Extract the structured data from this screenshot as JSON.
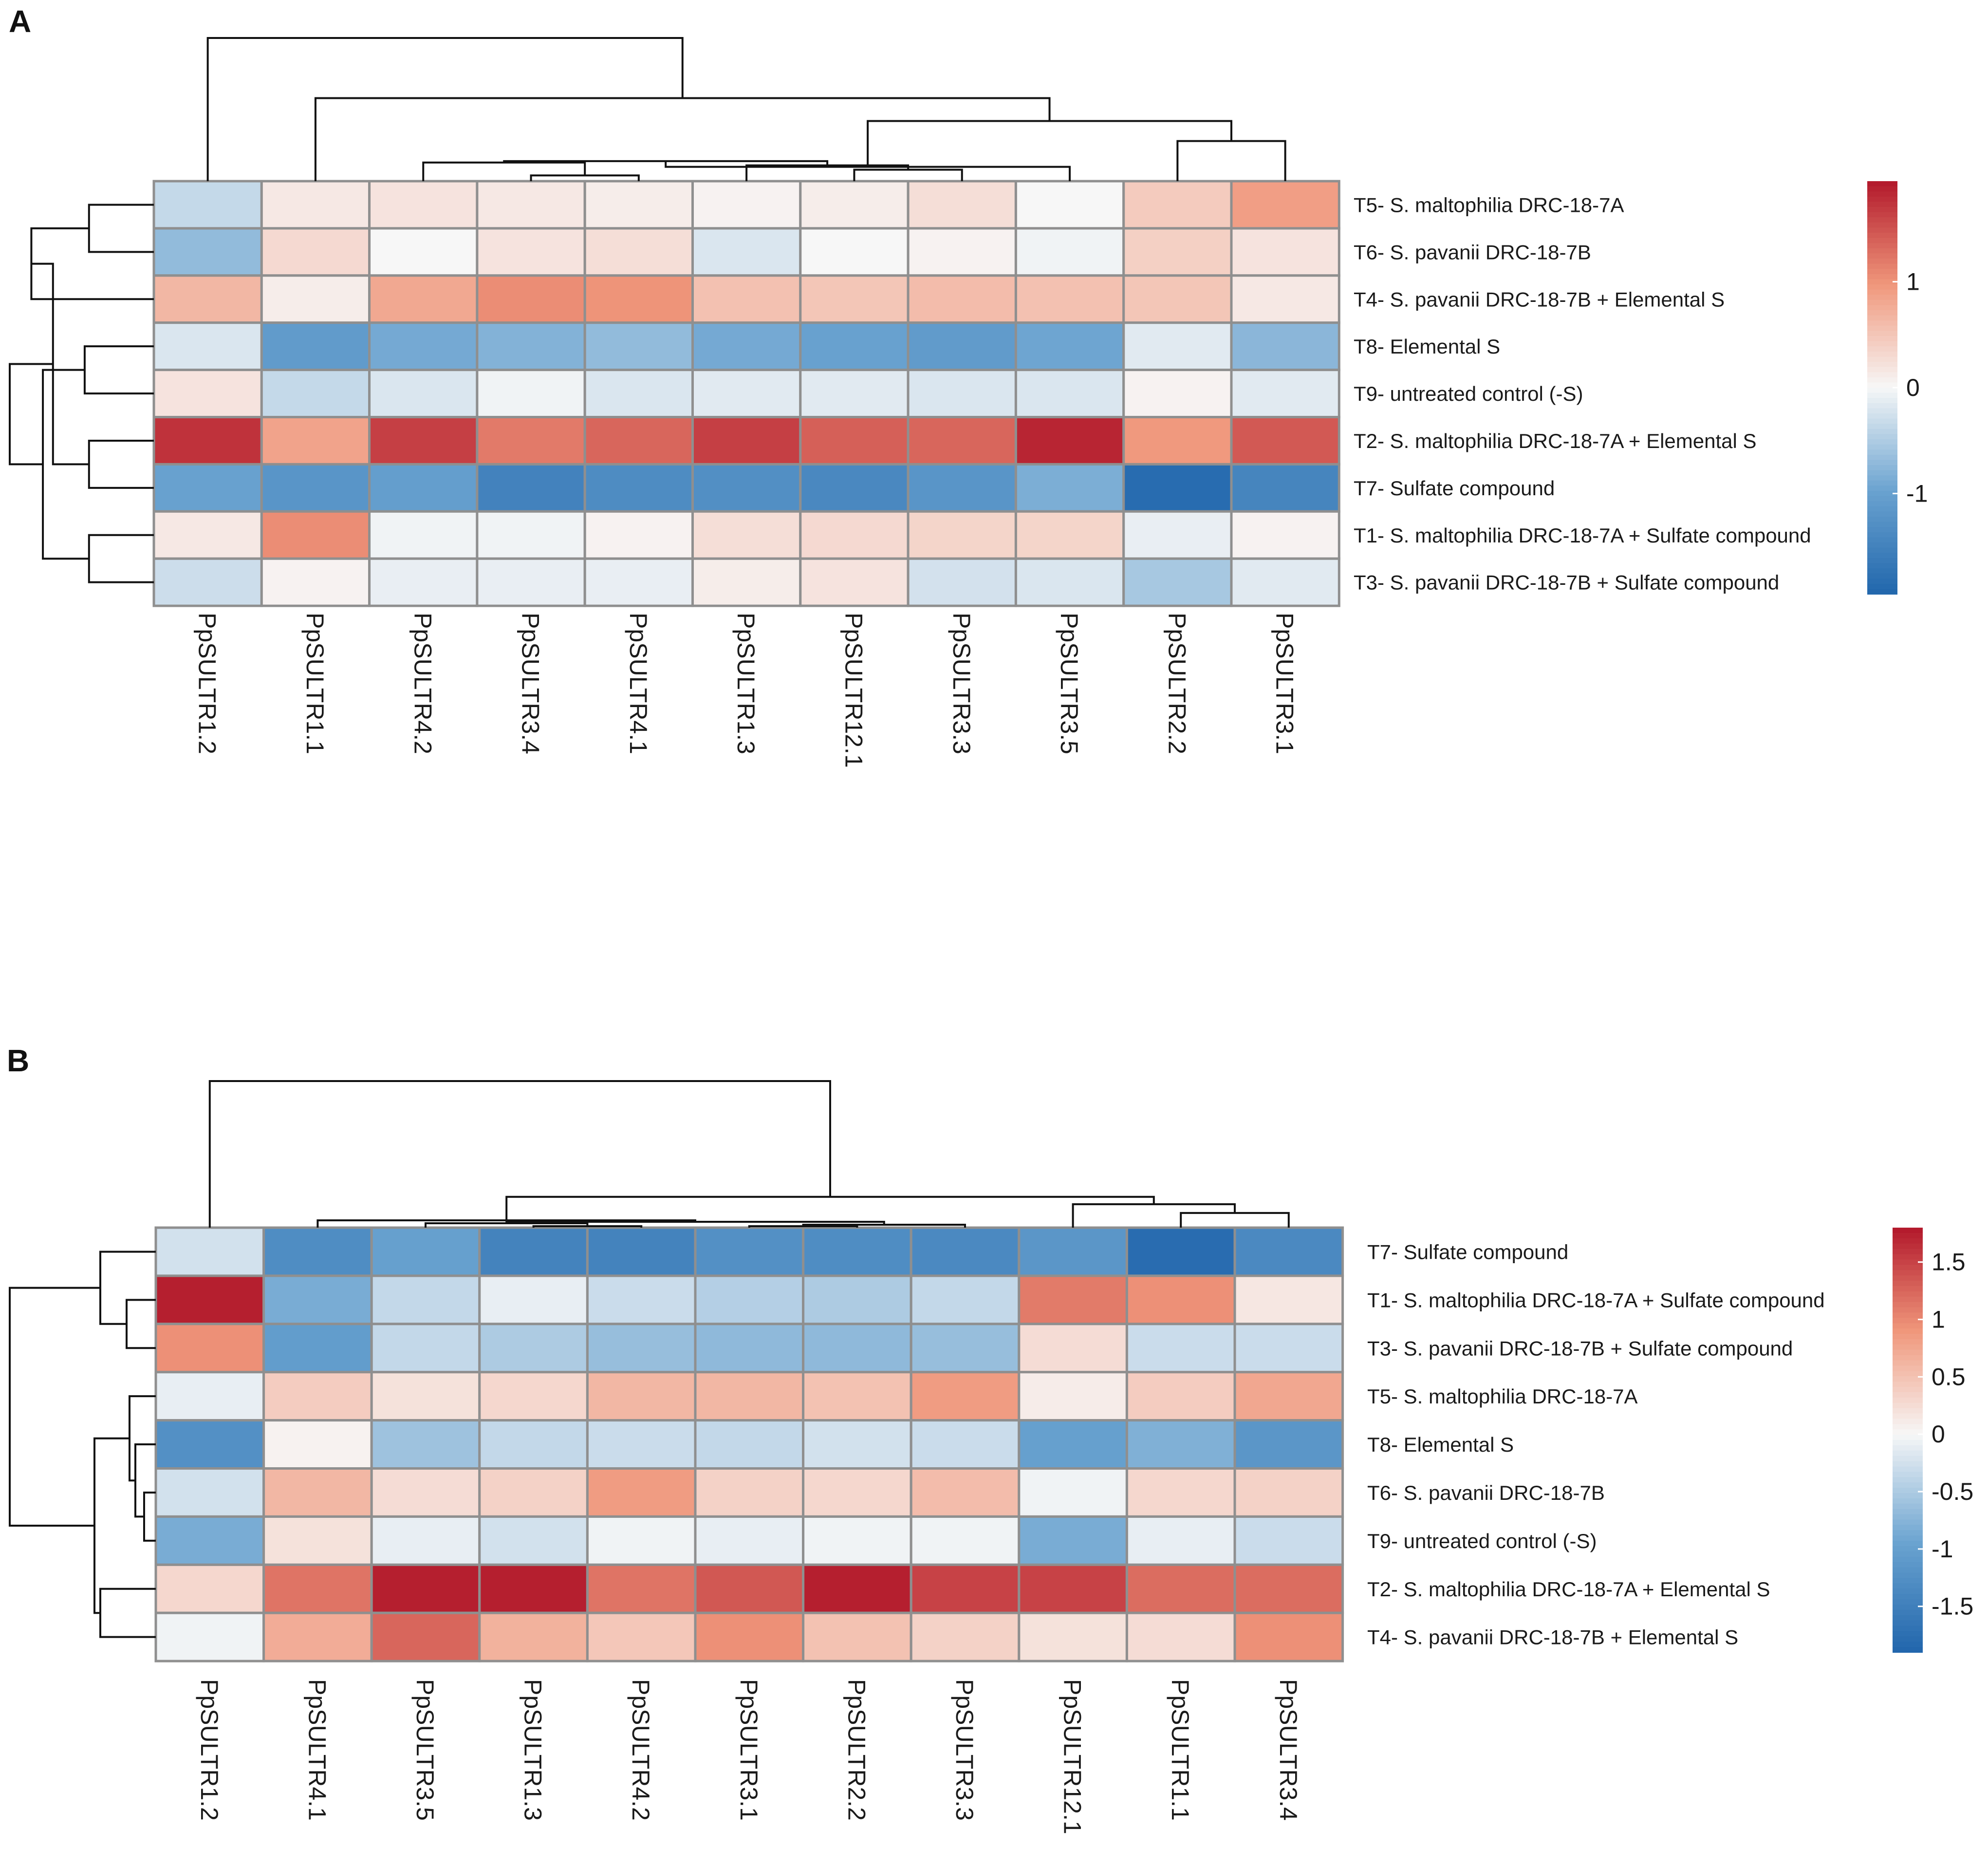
{
  "chart_data": [
    {
      "panel": "A",
      "type": "heatmap",
      "rows": [
        "T5- S. maltophilia DRC-18-7A",
        "T6- S. pavanii DRC-18-7B",
        "T4- S. pavanii DRC-18-7B + Elemental S",
        "T8- Elemental S",
        "T9- untreated control (-S)",
        "T2- S. maltophilia DRC-18-7A + Elemental S",
        "T7- Sulfate compound",
        "T1- S. maltophilia DRC-18-7A + Sulfate compound",
        "T3- S. pavanii DRC-18-7B + Sulfate compound"
      ],
      "columns": [
        "PpSULTR1.2",
        "PpSULTR1.1",
        "PpSULTR4.2",
        "PpSULTR3.4",
        "PpSULTR4.1",
        "PpSULTR1.3",
        "PpSULTR12.1",
        "PpSULTR3.3",
        "PpSULTR3.5",
        "PpSULTR2.2",
        "PpSULTR3.1"
      ],
      "values": [
        [
          -0.35,
          0.15,
          0.2,
          0.15,
          0.1,
          0.05,
          0.1,
          0.25,
          0.0,
          0.45,
          0.9
        ],
        [
          -0.7,
          0.3,
          0.0,
          0.2,
          0.25,
          -0.2,
          0.0,
          0.05,
          -0.05,
          0.4,
          0.2
        ],
        [
          0.65,
          0.1,
          0.8,
          1.05,
          1.0,
          0.55,
          0.5,
          0.6,
          0.55,
          0.5,
          0.15
        ],
        [
          -0.2,
          -1.1,
          -0.9,
          -0.8,
          -0.7,
          -0.9,
          -1.0,
          -1.1,
          -0.95,
          -0.15,
          -0.75
        ],
        [
          0.2,
          -0.35,
          -0.2,
          -0.05,
          -0.2,
          -0.15,
          -0.15,
          -0.2,
          -0.2,
          0.05,
          -0.15
        ],
        [
          1.75,
          0.85,
          1.65,
          1.2,
          1.35,
          1.65,
          1.4,
          1.35,
          1.85,
          0.95,
          1.45
        ],
        [
          -1.0,
          -1.2,
          -1.05,
          -1.5,
          -1.35,
          -1.3,
          -1.4,
          -1.2,
          -0.85,
          -1.85,
          -1.45
        ],
        [
          0.15,
          1.05,
          -0.05,
          -0.05,
          0.05,
          0.25,
          0.3,
          0.35,
          0.35,
          -0.1,
          0.05
        ],
        [
          -0.3,
          0.05,
          -0.1,
          -0.1,
          -0.1,
          0.1,
          0.2,
          -0.25,
          -0.2,
          -0.55,
          -0.15
        ]
      ],
      "legend": {
        "ticks": [
          1,
          0,
          -1
        ],
        "tick_labels": [
          "1",
          "0",
          "-1"
        ],
        "range": [
          -1.95,
          1.95
        ]
      },
      "row_dendrogram": {
        "merges": [
          [
            0,
            1,
            0.45
          ],
          [
            3,
            4,
            0.48
          ],
          [
            2,
            9,
            0.85
          ],
          [
            5,
            6,
            0.45
          ],
          [
            7,
            8,
            0.45
          ],
          [
            11,
            12,
            0.7
          ],
          [
            10,
            13,
            0.77
          ],
          [
            14,
            15,
            1.0
          ]
        ]
      },
      "col_dendrogram": {
        "merges": [
          [
            3,
            4,
            0.04
          ],
          [
            6,
            7,
            0.08
          ],
          [
            5,
            12,
            0.11
          ],
          [
            2,
            11,
            0.13
          ],
          [
            13,
            14,
            0.14
          ],
          [
            9,
            10,
            0.28
          ],
          [
            8,
            15,
            0.1
          ],
          [
            17,
            16,
            0.42
          ],
          [
            1,
            18,
            0.58
          ],
          [
            0,
            19,
            1.0
          ]
        ]
      }
    },
    {
      "panel": "B",
      "type": "heatmap",
      "rows": [
        "T7- Sulfate compound",
        "T1- S. maltophilia DRC-18-7A + Sulfate compound",
        "T3- S. pavanii DRC-18-7B + Sulfate compound",
        "T5- S. maltophilia DRC-18-7A",
        "T8- Elemental S",
        "T6- S. pavanii DRC-18-7B",
        "T9- untreated control (-S)",
        "T2- S. maltophilia DRC-18-7A + Elemental S",
        "T4- S. pavanii DRC-18-7B + Elemental S"
      ],
      "columns": [
        "PpSULTR1.2",
        "PpSULTR4.1",
        "PpSULTR3.5",
        "PpSULTR1.3",
        "PpSULTR4.2",
        "PpSULTR3.1",
        "PpSULTR2.2",
        "PpSULTR3.3",
        "PpSULTR12.1",
        "PpSULTR1.1",
        "PpSULTR3.4"
      ],
      "values": [
        [
          -0.25,
          -1.3,
          -1.0,
          -1.45,
          -1.45,
          -1.25,
          -1.3,
          -1.35,
          -1.15,
          -1.8,
          -1.35
        ],
        [
          1.75,
          -0.85,
          -0.35,
          -0.1,
          -0.3,
          -0.45,
          -0.5,
          -0.35,
          1.1,
          0.95,
          0.15
        ],
        [
          0.95,
          -1.05,
          -0.35,
          -0.5,
          -0.65,
          -0.7,
          -0.7,
          -0.65,
          0.25,
          -0.3,
          -0.3
        ],
        [
          -0.1,
          0.4,
          0.2,
          0.3,
          0.6,
          0.6,
          0.5,
          0.85,
          0.1,
          0.4,
          0.75
        ],
        [
          -1.25,
          0.05,
          -0.6,
          -0.35,
          -0.3,
          -0.35,
          -0.25,
          -0.3,
          -1.0,
          -0.8,
          -1.15
        ],
        [
          -0.25,
          0.6,
          0.25,
          0.35,
          0.85,
          0.35,
          0.3,
          0.55,
          -0.05,
          0.3,
          0.35
        ],
        [
          -0.85,
          0.2,
          -0.1,
          -0.25,
          -0.05,
          -0.1,
          -0.05,
          -0.05,
          -0.85,
          -0.1,
          -0.3
        ],
        [
          0.3,
          1.15,
          1.75,
          1.75,
          1.15,
          1.35,
          1.75,
          1.5,
          1.5,
          1.2,
          1.2
        ],
        [
          -0.05,
          0.7,
          1.25,
          0.65,
          0.45,
          0.95,
          0.5,
          0.35,
          0.2,
          0.25,
          0.95
        ]
      ],
      "legend": {
        "ticks": [
          1.5,
          1,
          0.5,
          0,
          -0.5,
          -1,
          -1.5
        ],
        "tick_labels": [
          "1.5",
          "1",
          "0.5",
          "0",
          "-0.5",
          "-1",
          "-1.5"
        ],
        "range": [
          -1.9,
          1.8
        ]
      },
      "row_dendrogram": {
        "merges": [
          [
            1,
            2,
            0.2
          ],
          [
            0,
            9,
            0.38
          ],
          [
            5,
            6,
            0.08
          ],
          [
            4,
            11,
            0.14
          ],
          [
            3,
            12,
            0.18
          ],
          [
            7,
            8,
            0.38
          ],
          [
            13,
            14,
            0.42
          ],
          [
            10,
            15,
            1.0
          ]
        ]
      },
      "col_dendrogram": {
        "merges": [
          [
            3,
            4,
            0.01
          ],
          [
            5,
            6,
            0.01
          ],
          [
            2,
            11,
            0.03
          ],
          [
            12,
            7,
            0.02
          ],
          [
            13,
            14,
            0.04
          ],
          [
            1,
            15,
            0.05
          ],
          [
            9,
            10,
            0.1
          ],
          [
            8,
            17,
            0.16
          ],
          [
            16,
            18,
            0.21
          ],
          [
            0,
            19,
            1.0
          ]
        ]
      }
    }
  ],
  "panels": [
    {
      "label": "A"
    },
    {
      "label": "B"
    }
  ],
  "colors": {
    "low": "#2166ac",
    "lowmid": "#6aa3d0",
    "mid": "#f7f7f7",
    "highmid": "#f0977b",
    "high": "#b2182b"
  }
}
